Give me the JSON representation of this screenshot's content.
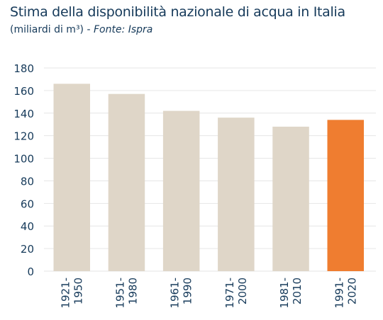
{
  "title": "Stima della disponibilità nazionale di acqua in Italia",
  "subtitle_unit": "(miliardi di m³)",
  "subtitle_sep": " - ",
  "subtitle_source": "Fonte: Ispra",
  "colors": {
    "bar": "#dfd6c8",
    "highlight": "#ef7d30",
    "grid": "#e6e6e6",
    "text": "#163a5a"
  },
  "chart_data": {
    "type": "bar",
    "title": "Stima della disponibilità nazionale di acqua in Italia",
    "subtitle": "(miliardi di m³) - Fonte: Ispra",
    "categories": [
      "1921-1950",
      "1951-1980",
      "1961-1990",
      "1971-2000",
      "1981-2010",
      "1991-2020"
    ],
    "category_label_lines": [
      [
        "1921-",
        "1950"
      ],
      [
        "1951-",
        "1980"
      ],
      [
        "1961-",
        "1990"
      ],
      [
        "1971-",
        "2000"
      ],
      [
        "1981-",
        "2010"
      ],
      [
        "1991-",
        "2020"
      ]
    ],
    "values": [
      166,
      157,
      142,
      136,
      128,
      134
    ],
    "highlight_index": 5,
    "yticks": [
      0,
      20,
      40,
      60,
      80,
      100,
      120,
      140,
      160,
      180
    ],
    "ylim": [
      0,
      180
    ],
    "xlabel": "",
    "ylabel": "",
    "grid": true,
    "legend": "none"
  }
}
